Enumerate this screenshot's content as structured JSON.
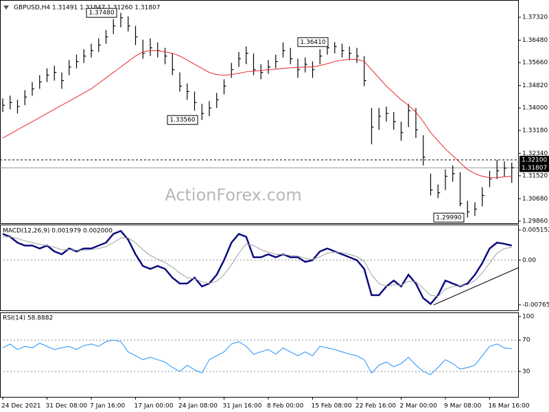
{
  "chart_data": [
    {
      "type": "ohlc",
      "title": "GBPUSD,H4  1.31491 1.31847 1.31260 1.31807",
      "watermark": "ActionForex.com",
      "ylim": [
        1.29785,
        1.3795
      ],
      "yticks": [
        {
          "value": 1.3732,
          "label": "1.37320"
        },
        {
          "value": 1.3648,
          "label": "1.36480"
        },
        {
          "value": 1.3566,
          "label": "1.35660"
        },
        {
          "value": 1.3482,
          "label": "1.34820"
        },
        {
          "value": 1.34,
          "label": "1.34000"
        },
        {
          "value": 1.3318,
          "label": "1.33180"
        },
        {
          "value": 1.3234,
          "label": "1.32340"
        },
        {
          "value": 1.3152,
          "label": "1.31520"
        },
        {
          "value": 1.3068,
          "label": "1.30680"
        },
        {
          "value": 1.2986,
          "label": "1.29860"
        }
      ],
      "color": "#000000",
      "high": [
        1.3435,
        1.3445,
        1.343,
        1.3465,
        1.3495,
        1.352,
        1.3545,
        1.3555,
        1.353,
        1.3575,
        1.3595,
        1.3615,
        1.3635,
        1.3655,
        1.3685,
        1.3725,
        1.3748,
        1.3735,
        1.37,
        1.365,
        1.3655,
        1.364,
        1.362,
        1.36,
        1.353,
        1.349,
        1.346,
        1.3415,
        1.3425,
        1.3455,
        1.3505,
        1.3565,
        1.3605,
        1.3625,
        1.36,
        1.356,
        1.3575,
        1.3595,
        1.364,
        1.362,
        1.358,
        1.3585,
        1.357,
        1.3615,
        1.364,
        1.3641,
        1.3635,
        1.3625,
        1.362,
        1.359,
        1.34,
        1.34,
        1.3405,
        1.3385,
        1.335,
        1.3415,
        1.34,
        1.33,
        1.316,
        1.312,
        1.3175,
        1.319,
        1.3165,
        1.306,
        1.3055,
        1.311,
        1.317,
        1.321,
        1.3205,
        1.32
      ],
      "low": [
        1.3385,
        1.3395,
        1.338,
        1.341,
        1.3445,
        1.347,
        1.3495,
        1.35,
        1.347,
        1.352,
        1.3545,
        1.3565,
        1.3585,
        1.3605,
        1.3635,
        1.367,
        1.3695,
        1.368,
        1.363,
        1.358,
        1.359,
        1.3585,
        1.356,
        1.352,
        1.346,
        1.343,
        1.339,
        1.3356,
        1.337,
        1.34,
        1.345,
        1.351,
        1.355,
        1.356,
        1.352,
        1.3505,
        1.3525,
        1.3545,
        1.3585,
        1.356,
        1.351,
        1.353,
        1.351,
        1.356,
        1.3595,
        1.36,
        1.3585,
        1.3575,
        1.3565,
        1.348,
        1.3267,
        1.332,
        1.335,
        1.332,
        1.328,
        1.333,
        1.329,
        1.319,
        1.308,
        1.307,
        1.31,
        1.313,
        1.304,
        1.2999,
        1.3005,
        1.304,
        1.311,
        1.314,
        1.315,
        1.3126
      ],
      "close": [
        1.341,
        1.342,
        1.3405,
        1.344,
        1.347,
        1.3495,
        1.352,
        1.353,
        1.35,
        1.355,
        1.357,
        1.359,
        1.361,
        1.363,
        1.366,
        1.37,
        1.373,
        1.37,
        1.366,
        1.36,
        1.362,
        1.361,
        1.359,
        1.354,
        1.348,
        1.346,
        1.342,
        1.338,
        1.34,
        1.343,
        1.348,
        1.354,
        1.358,
        1.36,
        1.354,
        1.353,
        1.355,
        1.357,
        1.361,
        1.358,
        1.354,
        1.356,
        1.354,
        1.359,
        1.362,
        1.3625,
        1.361,
        1.36,
        1.359,
        1.35,
        1.333,
        1.337,
        1.338,
        1.335,
        1.331,
        1.339,
        1.332,
        1.322,
        1.31,
        1.309,
        1.315,
        1.316,
        1.305,
        1.302,
        1.303,
        1.308,
        1.314,
        1.317,
        1.318,
        1.3181
      ],
      "ma": {
        "color": "#e8262a",
        "values": [
          1.329,
          1.3305,
          1.332,
          1.3335,
          1.335,
          1.3365,
          1.338,
          1.3395,
          1.341,
          1.3425,
          1.344,
          1.3455,
          1.347,
          1.349,
          1.351,
          1.353,
          1.355,
          1.357,
          1.359,
          1.3605,
          1.361,
          1.361,
          1.3605,
          1.36,
          1.359,
          1.3575,
          1.356,
          1.3545,
          1.353,
          1.3522,
          1.352,
          1.3522,
          1.3527,
          1.3532,
          1.3535,
          1.3537,
          1.354,
          1.3542,
          1.3545,
          1.3547,
          1.3548,
          1.355,
          1.355,
          1.3555,
          1.3562,
          1.357,
          1.3575,
          1.3578,
          1.3578,
          1.357,
          1.354,
          1.351,
          1.348,
          1.3455,
          1.343,
          1.341,
          1.3385,
          1.335,
          1.331,
          1.328,
          1.325,
          1.3225,
          1.32,
          1.3175,
          1.316,
          1.315,
          1.3145,
          1.3145,
          1.3148,
          1.315
        ]
      },
      "levels": [
        {
          "value": 1.321,
          "label": "1.32100"
        },
        {
          "value": 1.31807,
          "label": "1.31807"
        }
      ],
      "callouts": [
        {
          "value": 1.3748,
          "label": "1.37480"
        },
        {
          "value": 1.3356,
          "label": "1.33560"
        },
        {
          "value": 1.3641,
          "label": "1.36410"
        },
        {
          "value": 1.2999,
          "label": "1.29990"
        }
      ]
    },
    {
      "type": "line",
      "title": "MACD(12,26,9) 0.001979 0.002000",
      "ylim": [
        -0.0086,
        0.0061
      ],
      "yticks": [
        0.005152,
        {
          "value": 0,
          "label": "0.00"
        },
        -0.00765
      ],
      "levels": [
        0
      ],
      "series": [
        {
          "color": "#0a0a80",
          "values": [
            0.0045,
            0.004,
            0.003,
            0.0025,
            0.0025,
            0.002,
            0.0025,
            0.0015,
            0.001,
            0.002,
            0.0015,
            0.002,
            0.002,
            0.0025,
            0.003,
            0.0045,
            0.005,
            0.0035,
            0.001,
            -0.001,
            -0.0015,
            -0.001,
            -0.0015,
            -0.003,
            -0.004,
            -0.004,
            -0.003,
            -0.0045,
            -0.004,
            -0.0025,
            0.0,
            0.003,
            0.0045,
            0.004,
            0.0005,
            0.0005,
            0.001,
            0.0005,
            0.001,
            0.0005,
            0.0005,
            -0.0003,
            0.0,
            0.0015,
            0.002,
            0.0015,
            0.001,
            0.0005,
            0.0,
            -0.0015,
            -0.006,
            -0.006,
            -0.0045,
            -0.0035,
            -0.0045,
            -0.0025,
            -0.004,
            -0.0065,
            -0.0075,
            -0.006,
            -0.0035,
            -0.004,
            -0.0045,
            -0.004,
            -0.0025,
            -0.0005,
            0.002,
            0.003,
            0.0028,
            0.0025
          ]
        },
        {
          "color": "#a0a0a0",
          "values": [
            0.004,
            0.004,
            0.0037,
            0.0033,
            0.003,
            0.0027,
            0.0025,
            0.0022,
            0.0018,
            0.0018,
            0.0017,
            0.0017,
            0.0018,
            0.002,
            0.0023,
            0.003,
            0.0038,
            0.0038,
            0.003,
            0.0018,
            0.0008,
            0.0002,
            -0.0004,
            -0.0012,
            -0.0022,
            -0.003,
            -0.0032,
            -0.0037,
            -0.004,
            -0.0036,
            -0.0025,
            -0.0008,
            0.0012,
            0.0028,
            0.0025,
            0.0018,
            0.0014,
            0.001,
            0.001,
            0.0008,
            0.0007,
            0.0003,
            0.0001,
            0.0006,
            0.0012,
            0.0014,
            0.0013,
            0.001,
            0.0006,
            -0.0002,
            -0.0025,
            -0.004,
            -0.0045,
            -0.0042,
            -0.0043,
            -0.0036,
            -0.0037,
            -0.0048,
            -0.006,
            -0.0062,
            -0.005,
            -0.0045,
            -0.0044,
            -0.0042,
            -0.0035,
            -0.0022,
            -0.0005,
            0.0012,
            0.002,
            0.0022
          ]
        }
      ]
    },
    {
      "type": "line",
      "title": "RSI(14) 58.8882",
      "ylim": [
        -2.4,
        105.2
      ],
      "yticks": [
        100,
        70,
        30
      ],
      "levels": [
        70,
        30
      ],
      "categories": [
        "24 Dec 2021",
        null,
        null,
        null,
        null,
        null,
        "31 Dec 08:00",
        null,
        null,
        null,
        null,
        null,
        "7 Jan 16:00",
        null,
        null,
        null,
        null,
        null,
        "17 Jan 00:00",
        null,
        null,
        null,
        null,
        null,
        "24 Jan 08:00",
        null,
        null,
        null,
        null,
        null,
        "31 Jan 16:00",
        null,
        null,
        null,
        null,
        null,
        "8 Feb 00:00",
        null,
        null,
        null,
        null,
        null,
        "15 Feb 08:00",
        null,
        null,
        null,
        null,
        null,
        "22 Feb 16:00",
        null,
        null,
        null,
        null,
        null,
        "2 Mar 00:00",
        null,
        null,
        null,
        null,
        null,
        "9 Mar 08:00",
        null,
        null,
        null,
        null,
        null,
        "16 Mar 16:00",
        null,
        null,
        null
      ],
      "series": [
        {
          "color": "#1e90ff",
          "values": [
            60,
            65,
            58,
            62,
            60,
            66,
            62,
            58,
            60,
            62,
            58,
            63,
            65,
            62,
            68,
            70,
            68,
            55,
            50,
            45,
            48,
            45,
            42,
            35,
            30,
            38,
            32,
            28,
            45,
            50,
            55,
            65,
            68,
            62,
            52,
            55,
            58,
            52,
            60,
            55,
            50,
            55,
            50,
            62,
            60,
            58,
            55,
            52,
            50,
            45,
            28,
            38,
            42,
            36,
            40,
            48,
            38,
            30,
            26,
            35,
            45,
            40,
            33,
            35,
            38,
            50,
            62,
            65,
            60,
            58.9
          ]
        }
      ]
    }
  ]
}
